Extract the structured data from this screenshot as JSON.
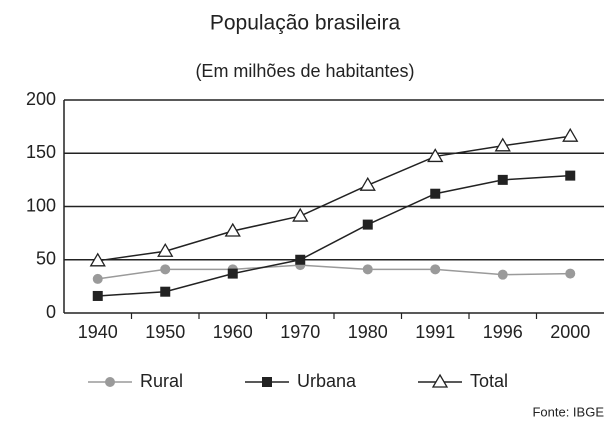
{
  "chart_data": {
    "type": "line",
    "title": "População brasileira",
    "subtitle": "(Em milhões de habitantes)",
    "categories": [
      "1940",
      "1950",
      "1960",
      "1970",
      "1980",
      "1991",
      "1996",
      "2000"
    ],
    "series": [
      {
        "name": "Rural",
        "color": "#9a9a9a",
        "marker": "circle",
        "values": [
          32,
          41,
          41,
          45,
          41,
          41,
          36,
          37
        ]
      },
      {
        "name": "Urbana",
        "color": "#222222",
        "marker": "square",
        "values": [
          16,
          20,
          37,
          50,
          83,
          112,
          125,
          129
        ]
      },
      {
        "name": "Total",
        "color": "#222222",
        "marker": "triangle",
        "values": [
          49,
          58,
          77,
          91,
          120,
          147,
          157,
          166
        ]
      }
    ],
    "ylim": [
      0,
      200
    ],
    "yticks": [
      0,
      50,
      100,
      150,
      200
    ],
    "grid": true,
    "source": "Fonte: IBGE"
  }
}
